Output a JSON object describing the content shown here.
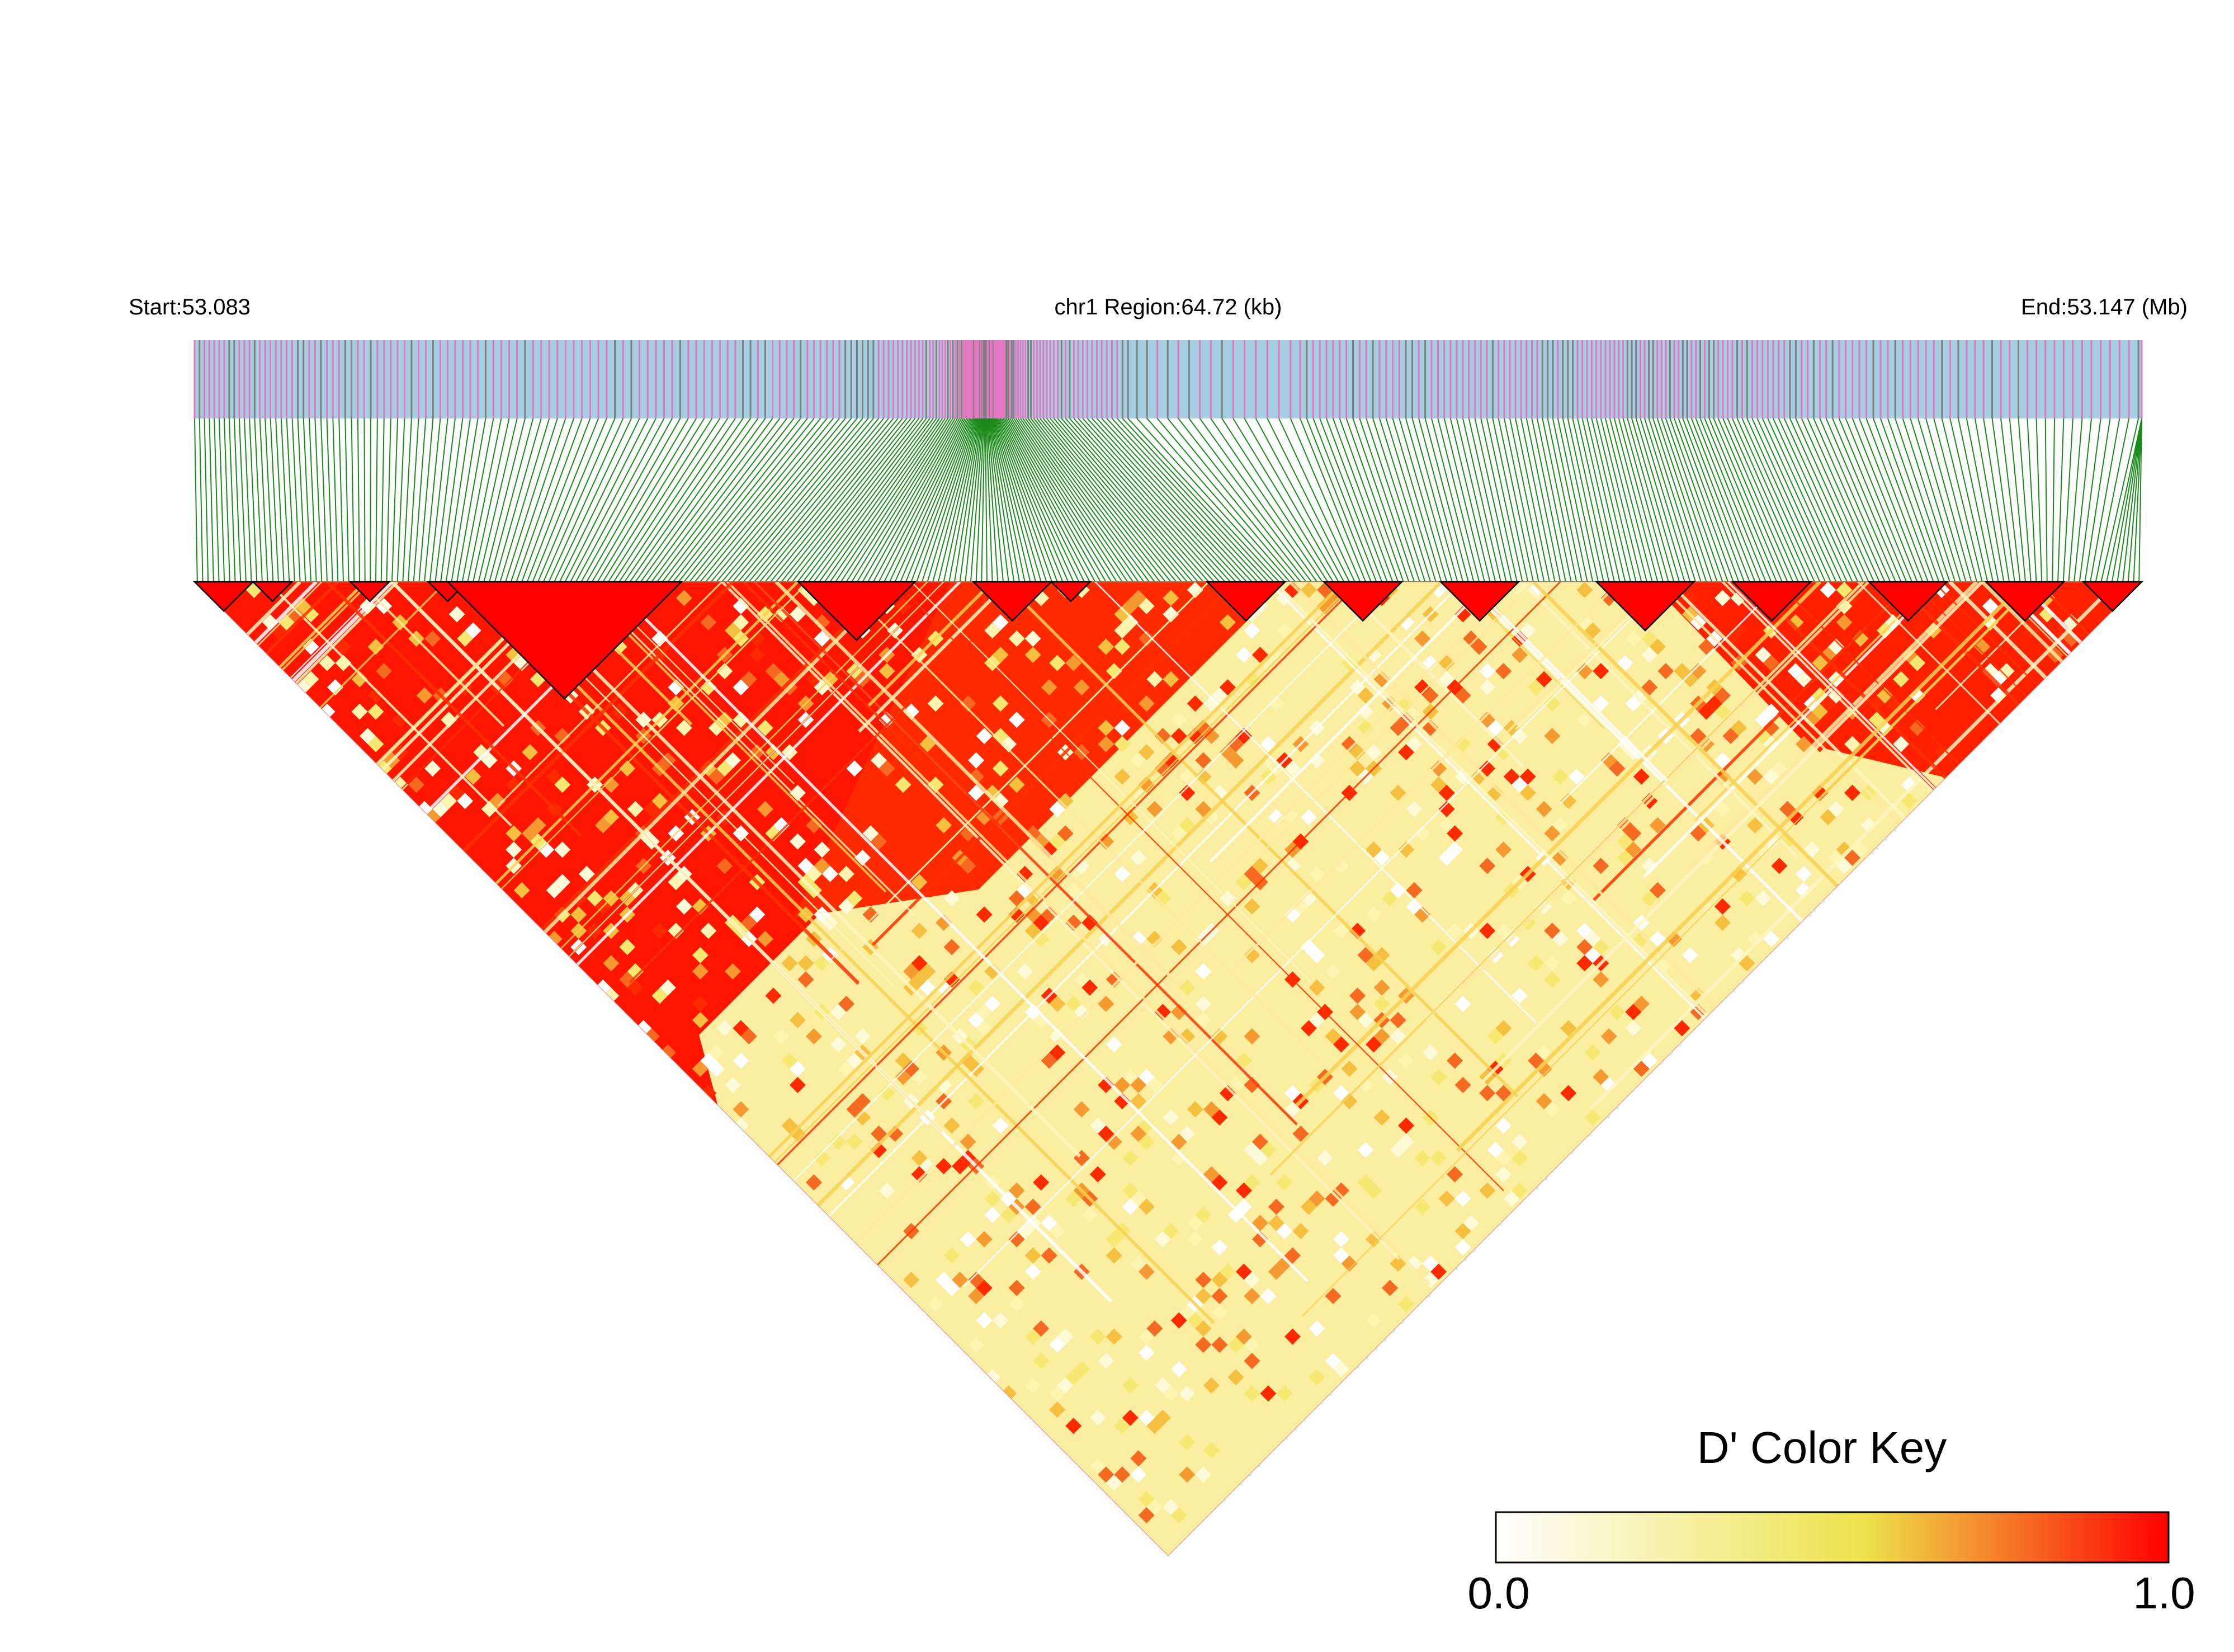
{
  "header": {
    "start_label": "Start:53.083",
    "region_label": "chr1 Region:64.72 (kb)",
    "end_label": "End:53.147 (Mb)"
  },
  "colors": {
    "track_bg": "#a6cee3",
    "snp_pink": "#e377c2",
    "snp_gray": "#7f7f7f",
    "connector": "#1a8a1a",
    "block_outline": "#000000",
    "key_low": "#ffffff",
    "key_mid": "#ede24a",
    "key_high": "#ff0000"
  },
  "chart_data": {
    "type": "heatmap",
    "title": "",
    "region": {
      "chromosome": "chr1",
      "start_mb": 53.083,
      "end_mb": 53.147,
      "length_kb": 64.72
    },
    "color_key": {
      "title": "D' Color Key",
      "min_label": "0.0",
      "max_label": "1.0",
      "range": [
        0.0,
        1.0
      ]
    },
    "ld_blocks_fraction": [
      [
        0.0,
        0.03
      ],
      [
        0.03,
        0.05
      ],
      [
        0.08,
        0.1
      ],
      [
        0.12,
        0.14
      ],
      [
        0.13,
        0.25
      ],
      [
        0.31,
        0.37
      ],
      [
        0.4,
        0.44
      ],
      [
        0.44,
        0.46
      ],
      [
        0.52,
        0.56
      ],
      [
        0.58,
        0.62
      ],
      [
        0.64,
        0.68
      ],
      [
        0.72,
        0.77
      ],
      [
        0.79,
        0.83
      ],
      [
        0.86,
        0.9
      ],
      [
        0.92,
        0.96
      ],
      [
        0.97,
        1.0
      ]
    ]
  }
}
